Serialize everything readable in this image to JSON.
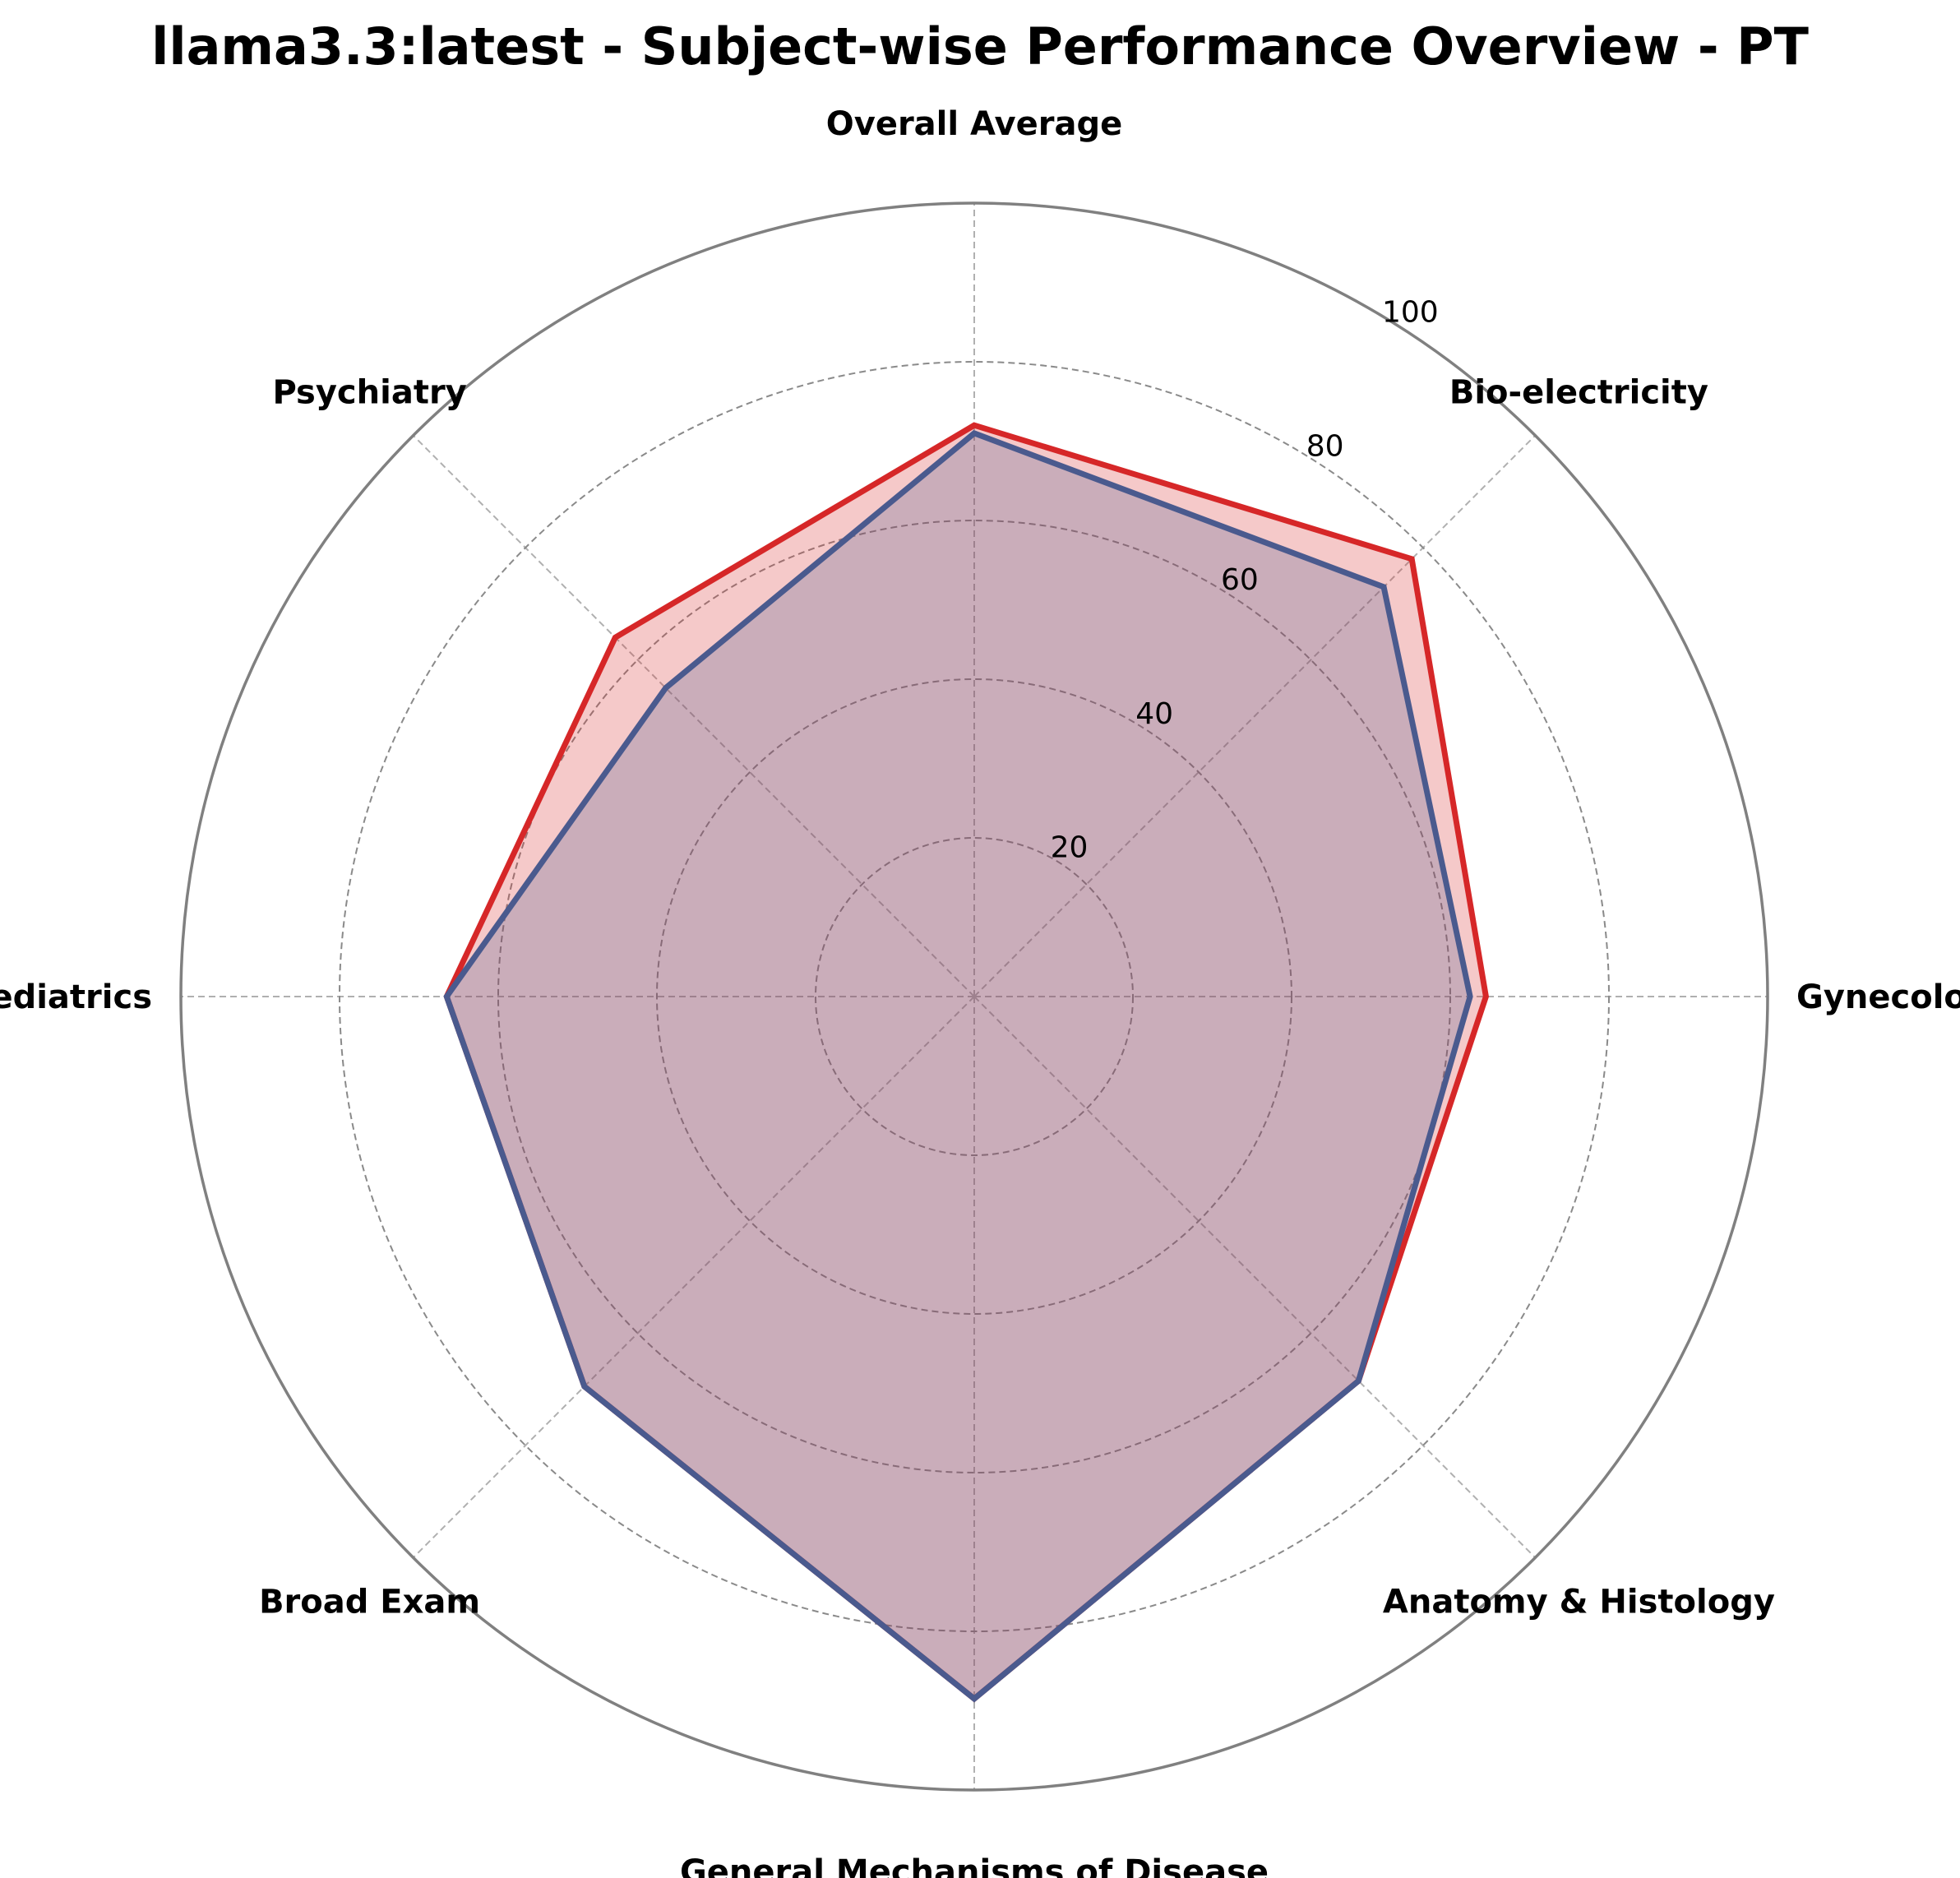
{
  "chart_data": {
    "type": "radar",
    "title": "llama3.3:latest - Subject-wise Performance Overview - PT",
    "axes": [
      "Overall Average",
      "Bio-electricity",
      "Gynecology",
      "Anatomy & Histology",
      "General Mechanisms of Disease",
      "Broad Exam",
      "Pediatrics",
      "Psychiatry"
    ],
    "rlim": [
      0,
      100
    ],
    "rticks": [
      20,
      40,
      60,
      80,
      100
    ],
    "grid": true,
    "series": [
      {
        "color": "#d62728",
        "fill": "#d62728",
        "values": [
          72,
          78,
          64.5,
          68.5,
          88.5,
          69.5,
          66.5,
          64
        ]
      },
      {
        "color": "#4a5a8e",
        "fill": "#4a5a8e",
        "values": [
          71,
          73,
          62.5,
          68.5,
          88.5,
          69.5,
          66.5,
          55
        ]
      }
    ]
  }
}
